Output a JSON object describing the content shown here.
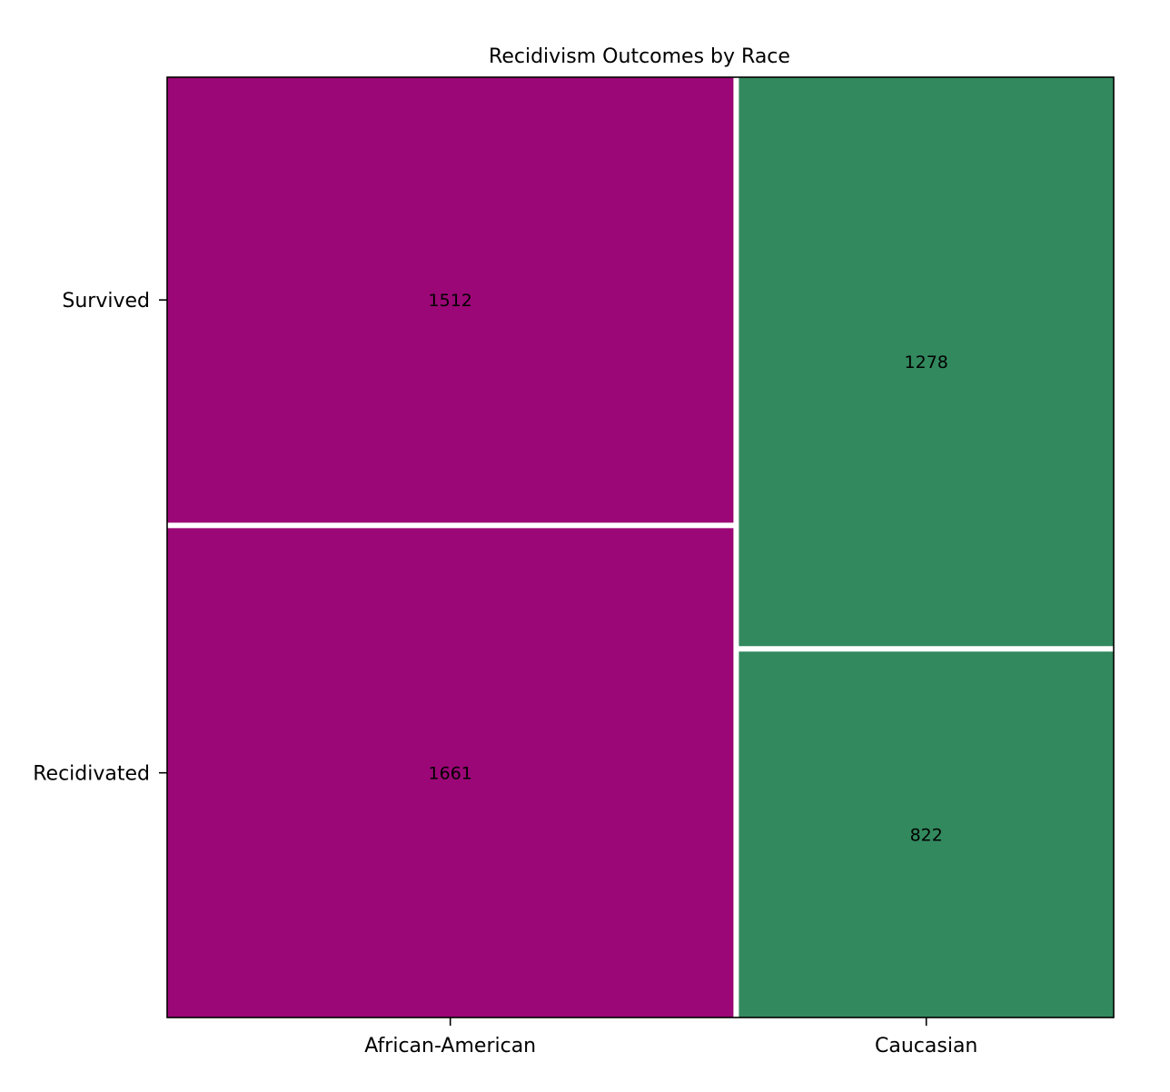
{
  "chart_data": {
    "type": "mosaic",
    "title": "Recidivism Outcomes by Race",
    "xlabel": "",
    "ylabel": "",
    "categories": [
      "African-American",
      "Caucasian"
    ],
    "rows": [
      "Survived",
      "Recidivated"
    ],
    "cells": [
      {
        "category": "African-American",
        "outcome": "Survived",
        "value": 1512
      },
      {
        "category": "African-American",
        "outcome": "Recidivated",
        "value": 1661
      },
      {
        "category": "Caucasian",
        "outcome": "Survived",
        "value": 1278
      },
      {
        "category": "Caucasian",
        "outcome": "Recidivated",
        "value": 822
      }
    ],
    "colors": {
      "African-American": "#9b0776",
      "Caucasian": "#32895e"
    },
    "grid": false,
    "legend": "none"
  }
}
